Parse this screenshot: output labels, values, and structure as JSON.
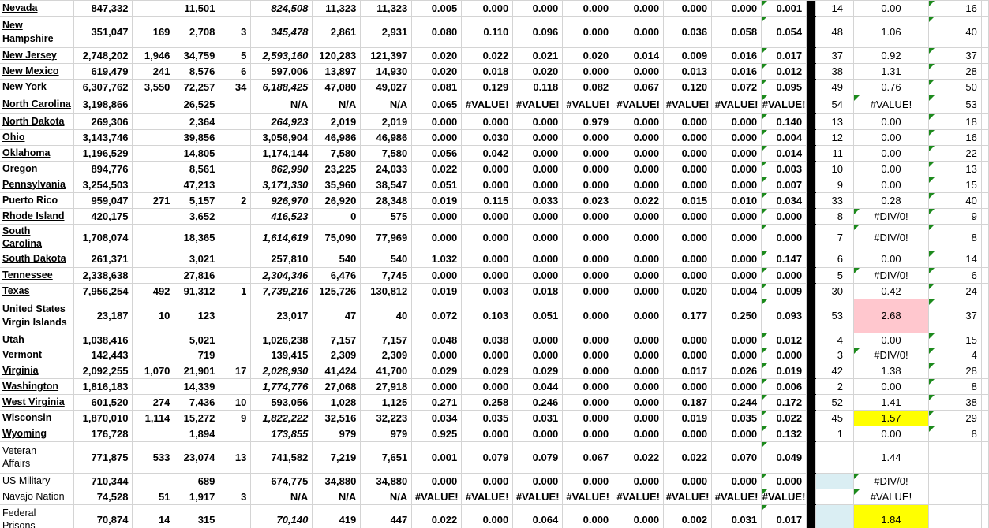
{
  "app": {
    "description": "Spreadsheet of U.S. states and territories with registration statistics, rates and ranks"
  },
  "colors": {
    "pink_fill": "#FFC7CE",
    "yellow_fill": "#FFFF00",
    "blue_fill": "#DAEEF3",
    "error_indicator_green": "#1C8A1C",
    "gridline": "#D4D4D4",
    "divider_bar": "#000000"
  },
  "rows": [
    {
      "label": "Nevada",
      "type": "state",
      "f_italic": true,
      "q_fill": "",
      "r_fill": "",
      "cells": [
        "847,332",
        "",
        "11,501",
        "",
        "824,508",
        "11,323",
        "11,323",
        "0.005",
        "0.000",
        "0.000",
        "0.000",
        "0.000",
        "0.000",
        "0.000",
        "0.001",
        "14",
        "0.00",
        "16"
      ]
    },
    {
      "label": "New\nHampshire",
      "type": "state",
      "f_italic": true,
      "q_fill": "",
      "r_fill": "",
      "cells": [
        "351,047",
        "169",
        "2,708",
        "3",
        "345,478",
        "2,861",
        "2,931",
        "0.080",
        "0.110",
        "0.096",
        "0.000",
        "0.000",
        "0.036",
        "0.058",
        "0.054",
        "48",
        "1.06",
        "40"
      ]
    },
    {
      "label": "New Jersey",
      "type": "state",
      "f_italic": true,
      "q_fill": "",
      "r_fill": "",
      "cells": [
        "2,748,202",
        "1,946",
        "34,759",
        "5",
        "2,593,160",
        "120,283",
        "121,397",
        "0.020",
        "0.022",
        "0.021",
        "0.020",
        "0.014",
        "0.009",
        "0.016",
        "0.017",
        "37",
        "0.92",
        "37"
      ]
    },
    {
      "label": "New Mexico",
      "type": "state",
      "f_italic": false,
      "q_fill": "",
      "r_fill": "",
      "cells": [
        "619,479",
        "241",
        "8,576",
        "6",
        "597,006",
        "13,897",
        "14,930",
        "0.020",
        "0.018",
        "0.020",
        "0.000",
        "0.000",
        "0.013",
        "0.016",
        "0.012",
        "38",
        "1.31",
        "28"
      ]
    },
    {
      "label": "New York",
      "type": "state",
      "f_italic": true,
      "q_fill": "",
      "r_fill": "",
      "cells": [
        "6,307,762",
        "3,550",
        "72,257",
        "34",
        "6,188,425",
        "47,080",
        "49,027",
        "0.081",
        "0.129",
        "0.118",
        "0.082",
        "0.067",
        "0.120",
        "0.072",
        "0.095",
        "49",
        "0.76",
        "50"
      ]
    },
    {
      "label": "North Carolina",
      "type": "state",
      "f_italic": false,
      "q_fill": "",
      "r_fill": "",
      "cells": [
        "3,198,866",
        "",
        "26,525",
        "",
        "N/A",
        "N/A",
        "N/A",
        "0.065",
        "#VALUE!",
        "#VALUE!",
        "#VALUE!",
        "#VALUE!",
        "#VALUE!",
        "#VALUE!",
        "#VALUE!",
        "54",
        "#VALUE!",
        "53"
      ]
    },
    {
      "label": "North Dakota",
      "type": "state",
      "f_italic": true,
      "q_fill": "",
      "r_fill": "",
      "cells": [
        "269,306",
        "",
        "2,364",
        "",
        "264,923",
        "2,019",
        "2,019",
        "0.000",
        "0.000",
        "0.000",
        "0.979",
        "0.000",
        "0.000",
        "0.000",
        "0.140",
        "13",
        "0.00",
        "18"
      ]
    },
    {
      "label": "Ohio",
      "type": "state",
      "f_italic": false,
      "q_fill": "",
      "r_fill": "",
      "cells": [
        "3,143,746",
        "",
        "39,856",
        "",
        "3,056,904",
        "46,986",
        "46,986",
        "0.000",
        "0.030",
        "0.000",
        "0.000",
        "0.000",
        "0.000",
        "0.000",
        "0.004",
        "12",
        "0.00",
        "16"
      ]
    },
    {
      "label": "Oklahoma",
      "type": "state",
      "f_italic": false,
      "q_fill": "",
      "r_fill": "",
      "cells": [
        "1,196,529",
        "",
        "14,805",
        "",
        "1,174,144",
        "7,580",
        "7,580",
        "0.056",
        "0.042",
        "0.000",
        "0.000",
        "0.000",
        "0.000",
        "0.000",
        "0.014",
        "11",
        "0.00",
        "22"
      ]
    },
    {
      "label": "Oregon",
      "type": "state",
      "f_italic": true,
      "q_fill": "",
      "r_fill": "",
      "cells": [
        "894,776",
        "",
        "8,561",
        "",
        "862,990",
        "23,225",
        "24,033",
        "0.022",
        "0.000",
        "0.000",
        "0.000",
        "0.000",
        "0.000",
        "0.000",
        "0.003",
        "10",
        "0.00",
        "13"
      ]
    },
    {
      "label": "Pennsylvania",
      "type": "state",
      "f_italic": true,
      "q_fill": "",
      "r_fill": "",
      "cells": [
        "3,254,503",
        "",
        "47,213",
        "",
        "3,171,330",
        "35,960",
        "38,547",
        "0.051",
        "0.000",
        "0.000",
        "0.000",
        "0.000",
        "0.000",
        "0.000",
        "0.007",
        "9",
        "0.00",
        "15"
      ]
    },
    {
      "label": "Puerto Rico",
      "type": "bold",
      "f_italic": true,
      "q_fill": "",
      "r_fill": "",
      "cells": [
        "959,047",
        "271",
        "5,157",
        "2",
        "926,970",
        "26,920",
        "28,348",
        "0.019",
        "0.115",
        "0.033",
        "0.023",
        "0.022",
        "0.015",
        "0.010",
        "0.034",
        "33",
        "0.28",
        "40"
      ]
    },
    {
      "label": "Rhode Island",
      "type": "state",
      "f_italic": true,
      "q_fill": "",
      "r_fill": "",
      "cells": [
        "420,175",
        "",
        "3,652",
        "",
        "416,523",
        "0",
        "575",
        "0.000",
        "0.000",
        "0.000",
        "0.000",
        "0.000",
        "0.000",
        "0.000",
        "0.000",
        "8",
        "#DIV/0!",
        "9"
      ]
    },
    {
      "label": "South Carolina",
      "type": "state",
      "f_italic": true,
      "q_fill": "",
      "r_fill": "",
      "cells": [
        "1,708,074",
        "",
        "18,365",
        "",
        "1,614,619",
        "75,090",
        "77,969",
        "0.000",
        "0.000",
        "0.000",
        "0.000",
        "0.000",
        "0.000",
        "0.000",
        "0.000",
        "7",
        "#DIV/0!",
        "8"
      ]
    },
    {
      "label": "South Dakota",
      "type": "state",
      "f_italic": false,
      "q_fill": "",
      "r_fill": "",
      "cells": [
        "261,371",
        "",
        "3,021",
        "",
        "257,810",
        "540",
        "540",
        "1.032",
        "0.000",
        "0.000",
        "0.000",
        "0.000",
        "0.000",
        "0.000",
        "0.147",
        "6",
        "0.00",
        "14"
      ]
    },
    {
      "label": "Tennessee",
      "type": "state",
      "f_italic": true,
      "q_fill": "",
      "r_fill": "",
      "cells": [
        "2,338,638",
        "",
        "27,816",
        "",
        "2,304,346",
        "6,476",
        "7,745",
        "0.000",
        "0.000",
        "0.000",
        "0.000",
        "0.000",
        "0.000",
        "0.000",
        "0.000",
        "5",
        "#DIV/0!",
        "6"
      ]
    },
    {
      "label": "Texas",
      "type": "state",
      "f_italic": true,
      "q_fill": "",
      "r_fill": "",
      "cells": [
        "7,956,254",
        "492",
        "91,312",
        "1",
        "7,739,216",
        "125,726",
        "130,812",
        "0.019",
        "0.003",
        "0.018",
        "0.000",
        "0.000",
        "0.020",
        "0.004",
        "0.009",
        "30",
        "0.42",
        "24"
      ]
    },
    {
      "label": "United States\nVirgin Islands",
      "type": "bold",
      "f_italic": false,
      "q_fill": "",
      "r_fill": "pink",
      "cells": [
        "23,187",
        "10",
        "123",
        "",
        "23,017",
        "47",
        "40",
        "0.072",
        "0.103",
        "0.051",
        "0.000",
        "0.000",
        "0.177",
        "0.250",
        "0.093",
        "53",
        "2.68",
        "37"
      ]
    },
    {
      "label": "Utah",
      "type": "state",
      "f_italic": false,
      "q_fill": "",
      "r_fill": "",
      "cells": [
        "1,038,416",
        "",
        "5,021",
        "",
        "1,026,238",
        "7,157",
        "7,157",
        "0.048",
        "0.038",
        "0.000",
        "0.000",
        "0.000",
        "0.000",
        "0.000",
        "0.012",
        "4",
        "0.00",
        "15"
      ]
    },
    {
      "label": "Vermont",
      "type": "state",
      "f_italic": false,
      "q_fill": "",
      "r_fill": "",
      "cells": [
        "142,443",
        "",
        "719",
        "",
        "139,415",
        "2,309",
        "2,309",
        "0.000",
        "0.000",
        "0.000",
        "0.000",
        "0.000",
        "0.000",
        "0.000",
        "0.000",
        "3",
        "#DIV/0!",
        "4"
      ]
    },
    {
      "label": "Virginia",
      "type": "state",
      "f_italic": true,
      "q_fill": "",
      "r_fill": "",
      "cells": [
        "2,092,255",
        "1,070",
        "21,901",
        "17",
        "2,028,930",
        "41,424",
        "41,700",
        "0.029",
        "0.029",
        "0.029",
        "0.000",
        "0.000",
        "0.017",
        "0.026",
        "0.019",
        "42",
        "1.38",
        "28"
      ]
    },
    {
      "label": "Washington",
      "type": "state",
      "f_italic": true,
      "q_fill": "",
      "r_fill": "",
      "cells": [
        "1,816,183",
        "",
        "14,339",
        "",
        "1,774,776",
        "27,068",
        "27,918",
        "0.000",
        "0.000",
        "0.044",
        "0.000",
        "0.000",
        "0.000",
        "0.000",
        "0.006",
        "2",
        "0.00",
        "8"
      ]
    },
    {
      "label": "West Virginia",
      "type": "state",
      "f_italic": false,
      "q_fill": "",
      "r_fill": "",
      "cells": [
        "601,520",
        "274",
        "7,436",
        "10",
        "593,056",
        "1,028",
        "1,125",
        "0.271",
        "0.258",
        "0.246",
        "0.000",
        "0.000",
        "0.187",
        "0.244",
        "0.172",
        "52",
        "1.41",
        "38"
      ]
    },
    {
      "label": "Wisconsin",
      "type": "state",
      "f_italic": true,
      "q_fill": "",
      "r_fill": "yellow",
      "cells": [
        "1,870,010",
        "1,114",
        "15,272",
        "9",
        "1,822,222",
        "32,516",
        "32,223",
        "0.034",
        "0.035",
        "0.031",
        "0.000",
        "0.000",
        "0.019",
        "0.035",
        "0.022",
        "45",
        "1.57",
        "29"
      ]
    },
    {
      "label": "Wyoming",
      "type": "state",
      "f_italic": true,
      "q_fill": "",
      "r_fill": "",
      "cells": [
        "176,728",
        "",
        "1,894",
        "",
        "173,855",
        "979",
        "979",
        "0.925",
        "0.000",
        "0.000",
        "0.000",
        "0.000",
        "0.000",
        "0.000",
        "0.132",
        "1",
        "0.00",
        "8"
      ]
    },
    {
      "label": "Veteran\nAffairs",
      "type": "plain",
      "f_italic": false,
      "q_fill": "",
      "r_fill": "",
      "cells": [
        "771,875",
        "533",
        "23,074",
        "13",
        "741,582",
        "7,219",
        "7,651",
        "0.001",
        "0.079",
        "0.079",
        "0.067",
        "0.022",
        "0.022",
        "0.070",
        "0.049",
        "",
        "1.44",
        ""
      ]
    },
    {
      "label": "US Military",
      "type": "plain",
      "f_italic": false,
      "q_fill": "blue",
      "r_fill": "",
      "cells": [
        "710,344",
        "",
        "689",
        "",
        "674,775",
        "34,880",
        "34,880",
        "0.000",
        "0.000",
        "0.000",
        "0.000",
        "0.000",
        "0.000",
        "0.000",
        "0.000",
        "",
        "#DIV/0!",
        ""
      ]
    },
    {
      "label": "Navajo Nation",
      "type": "plain",
      "f_italic": false,
      "q_fill": "",
      "r_fill": "",
      "cells": [
        "74,528",
        "51",
        "1,917",
        "3",
        "N/A",
        "N/A",
        "N/A",
        "#VALUE!",
        "#VALUE!",
        "#VALUE!",
        "#VALUE!",
        "#VALUE!",
        "#VALUE!",
        "#VALUE!",
        "#VALUE!",
        "",
        "#VALUE!",
        ""
      ]
    },
    {
      "label": "Federal\nPrisons",
      "type": "plain",
      "f_italic": true,
      "q_fill": "blue",
      "r_fill": "yellow",
      "cells": [
        "70,874",
        "14",
        "315",
        "",
        "70,140",
        "419",
        "447",
        "0.022",
        "0.000",
        "0.064",
        "0.000",
        "0.000",
        "0.002",
        "0.031",
        "0.017",
        "",
        "1.84",
        ""
      ]
    }
  ]
}
